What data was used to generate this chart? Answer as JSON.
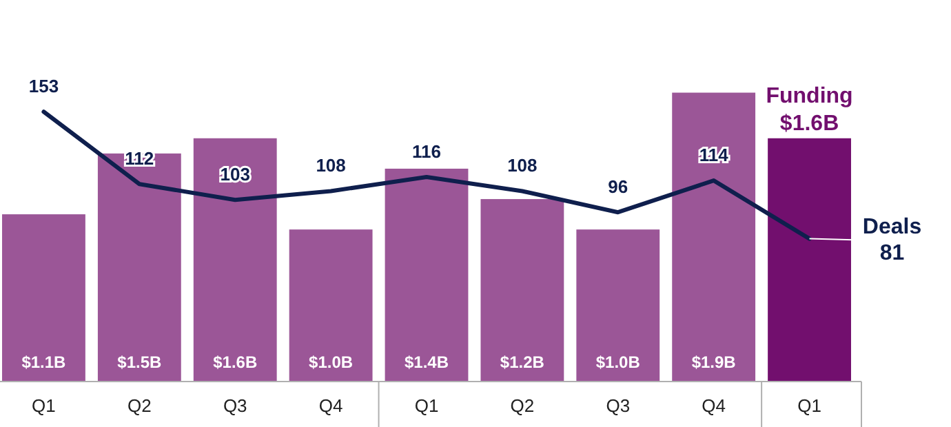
{
  "chart_data": {
    "type": "bar",
    "categories": [
      "Q1",
      "Q2",
      "Q3",
      "Q4",
      "Q1",
      "Q2",
      "Q3",
      "Q4",
      "Q1"
    ],
    "series": [
      {
        "name": "Funding",
        "colors": [
          "#9b5697",
          "#9b5697",
          "#9b5697",
          "#9b5697",
          "#9b5697",
          "#9b5697",
          "#9b5697",
          "#9b5697",
          "#720f6e"
        ],
        "values": [
          1.1,
          1.5,
          1.6,
          1.0,
          1.4,
          1.2,
          1.0,
          1.9,
          1.6
        ],
        "value_labels": [
          "$1.1B",
          "$1.5B",
          "$1.6B",
          "$1.0B",
          "$1.4B",
          "$1.2B",
          "$1.0B",
          "$1.9B",
          "$1.6B"
        ]
      },
      {
        "name": "Deals",
        "type": "line",
        "axis": "y2",
        "color": "#0f1f4d",
        "values": [
          153,
          112,
          103,
          108,
          116,
          108,
          96,
          114,
          81
        ],
        "value_labels": [
          "153",
          "112",
          "103",
          "108",
          "116",
          "108",
          "96",
          "114",
          "81"
        ]
      }
    ],
    "tick_labels": "x"
  }
}
